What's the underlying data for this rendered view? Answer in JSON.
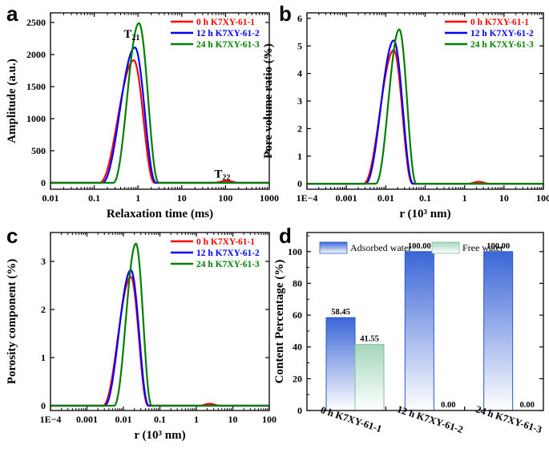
{
  "chart_data": [
    {
      "panel": "a",
      "type": "line",
      "x_scale": "log",
      "xlabel": "Relaxation time (ms)",
      "ylabel": "Amplitude (a.u.)",
      "xlim": [
        0.01,
        1000
      ],
      "ylim": [
        -100,
        2650
      ],
      "x_ticks": [
        "0.01",
        "0.1",
        "1",
        "10",
        "100",
        "1000"
      ],
      "y_ticks": [
        "0",
        "500",
        "1000",
        "1500",
        "2000",
        "2500"
      ],
      "annotations": [
        {
          "main": "T",
          "sub": "21",
          "x": 0.85,
          "y": 2260
        },
        {
          "main": "T",
          "sub": "22",
          "x": 100,
          "y": 80
        }
      ],
      "series": [
        {
          "name": "0 h   K7XY-61-1",
          "color": "#ff0000",
          "peaks": [
            {
              "start": 0.13,
              "end": 2.4,
              "peak_x": 0.8,
              "peak_y": 1910
            },
            {
              "start": 50,
              "end": 210,
              "peak_x": 110,
              "peak_y": 30
            }
          ]
        },
        {
          "name": "12 h K7XY-61-2",
          "color": "#0000ff",
          "peaks": [
            {
              "start": 0.15,
              "end": 2.6,
              "peak_x": 0.85,
              "peak_y": 2110
            }
          ]
        },
        {
          "name": "24 h K7XY-61-3",
          "color": "#008000",
          "peaks": [
            {
              "start": 0.27,
              "end": 3.0,
              "peak_x": 1.05,
              "peak_y": 2490
            }
          ]
        }
      ]
    },
    {
      "panel": "b",
      "type": "line",
      "x_scale": "log",
      "xlabel": "r (10³ nm)",
      "ylabel": "Pore volume ratio (%)",
      "xlim": [
        0.0001,
        100
      ],
      "ylim": [
        -0.2,
        6.2
      ],
      "x_ticks": [
        "1E−4",
        "0.001",
        "0.01",
        "0.1",
        "1",
        "10",
        "100"
      ],
      "y_ticks": [
        "0",
        "1",
        "2",
        "3",
        "4",
        "5",
        "6"
      ],
      "series": [
        {
          "name": "0 h   K7XY-61-1",
          "color": "#ff0000",
          "peaks": [
            {
              "start": 0.0027,
              "end": 0.048,
              "peak_x": 0.016,
              "peak_y": 4.85
            },
            {
              "start": 1.2,
              "end": 4.5,
              "peak_x": 2.3,
              "peak_y": 0.07
            }
          ]
        },
        {
          "name": "12 h K7XY-61-2",
          "color": "#0000ff",
          "peaks": [
            {
              "start": 0.003,
              "end": 0.05,
              "peak_x": 0.016,
              "peak_y": 5.2
            }
          ]
        },
        {
          "name": "24 h K7XY-61-3",
          "color": "#008000",
          "peaks": [
            {
              "start": 0.0055,
              "end": 0.06,
              "peak_x": 0.022,
              "peak_y": 5.6
            }
          ]
        }
      ]
    },
    {
      "panel": "c",
      "type": "line",
      "x_scale": "log",
      "xlabel": "r (10³ nm)",
      "ylabel": "Porosity component (%)",
      "xlim": [
        0.0001,
        100
      ],
      "ylim": [
        -0.1,
        3.6
      ],
      "x_ticks": [
        "1E−4",
        "0.001",
        "0.01",
        "0.1",
        "1",
        "10",
        "100"
      ],
      "y_ticks": [
        "0",
        "1",
        "2",
        "3"
      ],
      "series": [
        {
          "name": "0 h   K7XY-61-1",
          "color": "#ff0000",
          "peaks": [
            {
              "start": 0.0027,
              "end": 0.048,
              "peak_x": 0.016,
              "peak_y": 2.68
            },
            {
              "start": 1.2,
              "end": 4.5,
              "peak_x": 2.3,
              "peak_y": 0.04
            }
          ]
        },
        {
          "name": "12 h K7XY-61-2",
          "color": "#0000ff",
          "peaks": [
            {
              "start": 0.003,
              "end": 0.05,
              "peak_x": 0.016,
              "peak_y": 2.82
            }
          ]
        },
        {
          "name": "24 h K7XY-61-3",
          "color": "#008000",
          "peaks": [
            {
              "start": 0.0055,
              "end": 0.06,
              "peak_x": 0.022,
              "peak_y": 3.37
            }
          ]
        }
      ]
    },
    {
      "panel": "d",
      "type": "bar",
      "ylabel": "Content Percentage (%)",
      "ylim": [
        0,
        112
      ],
      "y_ticks": [
        "0",
        "20",
        "40",
        "60",
        "80",
        "100"
      ],
      "categories": [
        "0 h K7XY-61-1",
        "12 h K7XY-61-2",
        "24 h K7XY-61-3"
      ],
      "series": [
        {
          "name": "Adsorbed water",
          "color": "#3f6fd8",
          "values": [
            58.45,
            100.0,
            100.0
          ],
          "labels": [
            "58.45",
            "100.00",
            "100.00"
          ]
        },
        {
          "name": "Free water",
          "color": "#a8d8bf",
          "values": [
            41.55,
            0.0,
            0.0
          ],
          "labels": [
            "41.55",
            "0.00",
            "0.00"
          ]
        }
      ]
    }
  ],
  "panel_labels": [
    "a",
    "b",
    "c",
    "d"
  ]
}
